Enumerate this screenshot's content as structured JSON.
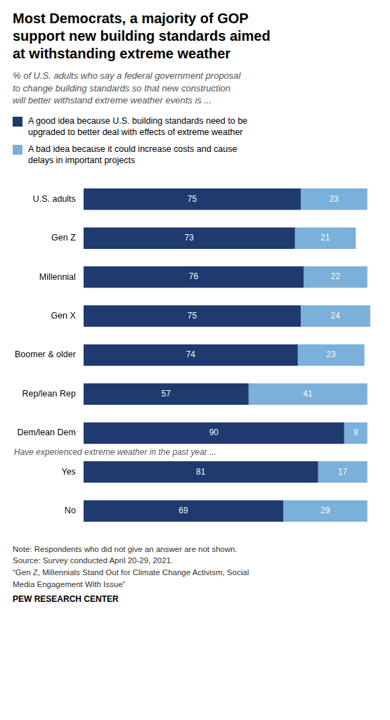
{
  "chart_data": {
    "type": "bar",
    "orientation": "horizontal",
    "stacked": true,
    "data_labels": true,
    "grid": false,
    "tick_labels": "y",
    "legend": "top",
    "title": "Most Democrats, a majority of GOP\nsupport new building standards aimed\nat withstanding extreme weather",
    "subtitle": "% of U.S. adults who say a federal government proposal\nto change building standards so that new construction\nwill better withstand extreme weather events is ...",
    "categories": [
      "U.S. adults",
      "Gen Z",
      "Millennial",
      "Gen X",
      "Boomer & older",
      "Rep/lean Rep",
      "Dem/lean Dem",
      "Yes",
      "No"
    ],
    "series": [
      {
        "name": "A good idea because U.S. building standards need to be\nupgraded to better deal with effects of extreme weather",
        "color": "#1e3a6e",
        "values": [
          75,
          73,
          76,
          75,
          74,
          57,
          90,
          81,
          69
        ]
      },
      {
        "name": "A bad idea because it could increase costs and cause\ndelays in important projects",
        "color": "#7ab0d9",
        "values": [
          23,
          21,
          22,
          24,
          23,
          41,
          8,
          17,
          29
        ]
      }
    ],
    "xlim": [
      0,
      100
    ],
    "annotations": [
      {
        "text": "Have experienced extreme weather in the past year ...",
        "category": "Yes"
      }
    ],
    "note": [
      "Note: Respondents who did not give an answer are not shown.",
      "Source: Survey conducted April 20-29, 2021.",
      "“Gen Z, Millennials Stand Out for Climate Change Activism, Social",
      "Media Engagement With Issue”"
    ],
    "source": "PEW RESEARCH CENTER"
  }
}
